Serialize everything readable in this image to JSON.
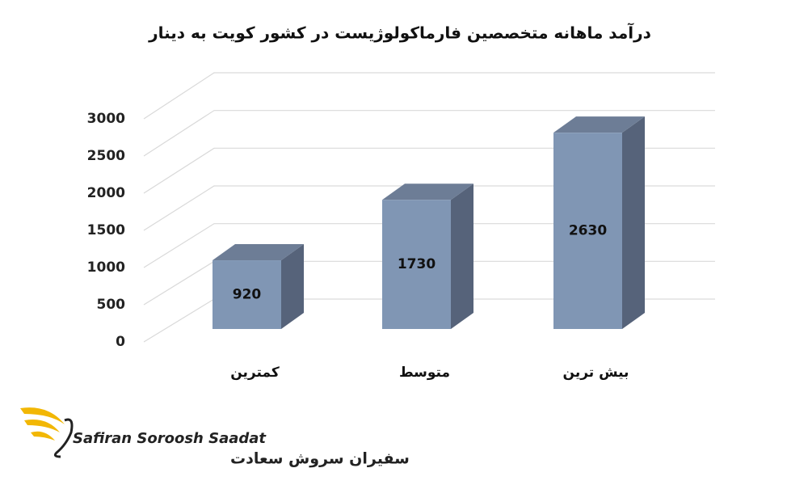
{
  "chart_data": {
    "type": "bar3d",
    "title": "درآمد ماهانه متخصصین فارماکولوژیست در کشور کویت به دینار",
    "categories": [
      "کمترین",
      "متوسط",
      "بیش ترین"
    ],
    "values": [
      920,
      1730,
      2630
    ],
    "color": "#8096b4",
    "ylim": [
      0,
      3000
    ],
    "yticks": [
      0,
      500,
      1000,
      1500,
      2000,
      2500,
      3000
    ],
    "grid": true
  },
  "logo": {
    "text_en": "Safiran Soroosh Saadat",
    "text_fa": "سفیران سروش سعادت"
  }
}
